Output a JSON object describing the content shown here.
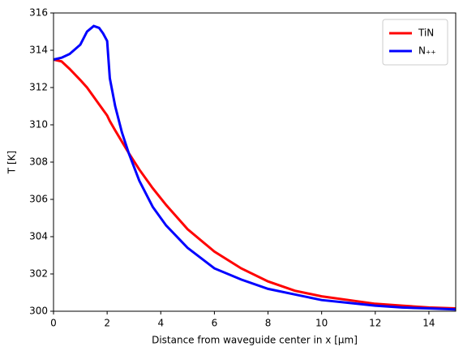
{
  "chart_data": {
    "type": "line",
    "xlabel": "Distance from waveguide center in x [µm]",
    "ylabel": "T [K]",
    "x": [
      0,
      0.3,
      0.6,
      1.0,
      1.25,
      1.5,
      1.7,
      1.85,
      2.0,
      2.1,
      2.3,
      2.55,
      2.8,
      3.2,
      3.7,
      4.2,
      5,
      6,
      7,
      8,
      9,
      10,
      11,
      12,
      13,
      14,
      15
    ],
    "series": [
      {
        "name": "TiN",
        "color": "#ff0000",
        "values": [
          313.5,
          313.4,
          313.0,
          312.4,
          312.0,
          311.5,
          311.1,
          310.8,
          310.5,
          310.2,
          309.7,
          309.1,
          308.5,
          307.6,
          306.6,
          305.7,
          304.4,
          303.2,
          302.3,
          301.6,
          301.1,
          300.8,
          300.6,
          300.4,
          300.3,
          300.2,
          300.15
        ]
      },
      {
        "name": "N₊₊",
        "color": "#0000ff",
        "values": [
          313.5,
          313.6,
          313.8,
          314.3,
          315.0,
          315.3,
          315.2,
          314.9,
          314.5,
          312.5,
          311.0,
          309.6,
          308.5,
          307.0,
          305.6,
          304.6,
          303.4,
          302.3,
          301.7,
          301.2,
          300.9,
          300.6,
          300.45,
          300.3,
          300.2,
          300.15,
          300.1
        ]
      }
    ],
    "xlim": [
      0,
      15
    ],
    "ylim": [
      300,
      316
    ],
    "xticks": [
      0,
      2,
      4,
      6,
      8,
      10,
      12,
      14
    ],
    "yticks": [
      300,
      302,
      304,
      306,
      308,
      310,
      312,
      314,
      316
    ],
    "legend": "upper right",
    "grid": false
  }
}
